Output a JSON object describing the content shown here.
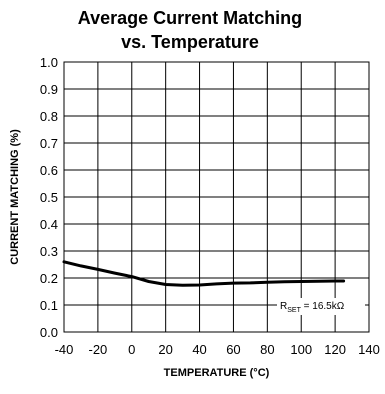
{
  "chart_data": {
    "type": "line",
    "title_line1": "Average Current Matching",
    "title_line2": "vs. Temperature",
    "xlabel": "TEMPERATURE (°C)",
    "ylabel": "CURRENT MATCHING (%)",
    "xlim": [
      -40,
      140
    ],
    "ylim": [
      0.0,
      1.0
    ],
    "x_ticks": [
      "-40",
      "-20",
      "0",
      "20",
      "40",
      "60",
      "80",
      "100",
      "120",
      "140"
    ],
    "y_ticks": [
      "0.0",
      "0.1",
      "0.2",
      "0.3",
      "0.4",
      "0.5",
      "0.6",
      "0.7",
      "0.8",
      "0.9",
      "1.0"
    ],
    "grid": true,
    "annotation": {
      "prefix": "R",
      "subscript": "SET",
      "suffix": " = 16.5kΩ"
    },
    "series": [
      {
        "x": [
          -40,
          -30,
          -20,
          -10,
          0,
          10,
          20,
          30,
          40,
          50,
          60,
          70,
          80,
          90,
          100,
          110,
          120,
          125
        ],
        "y": [
          0.26,
          0.245,
          0.232,
          0.218,
          0.205,
          0.187,
          0.176,
          0.173,
          0.174,
          0.178,
          0.181,
          0.182,
          0.184,
          0.186,
          0.187,
          0.188,
          0.189,
          0.189
        ]
      }
    ]
  }
}
